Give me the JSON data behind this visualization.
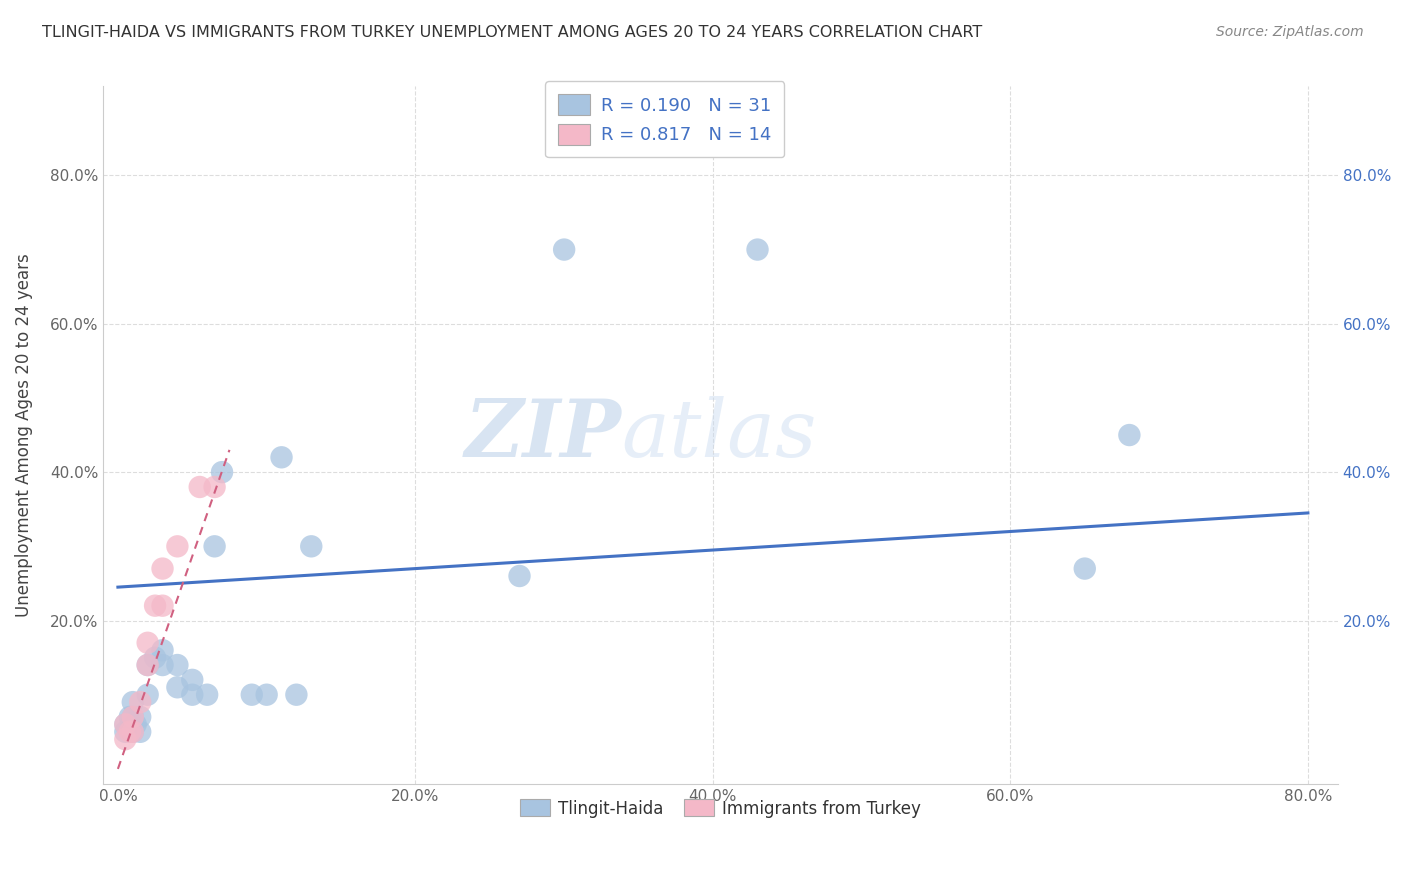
{
  "title": "TLINGIT-HAIDA VS IMMIGRANTS FROM TURKEY UNEMPLOYMENT AMONG AGES 20 TO 24 YEARS CORRELATION CHART",
  "source": "Source: ZipAtlas.com",
  "ylabel": "Unemployment Among Ages 20 to 24 years",
  "xlim": [
    -0.01,
    0.82
  ],
  "ylim": [
    -0.02,
    0.92
  ],
  "xticks": [
    0.0,
    0.2,
    0.4,
    0.6,
    0.8
  ],
  "yticks": [
    0.0,
    0.2,
    0.4,
    0.6,
    0.8
  ],
  "xticklabels": [
    "0.0%",
    "20.0%",
    "40.0%",
    "60.0%",
    "80.0%"
  ],
  "yticklabels": [
    "",
    "20.0%",
    "40.0%",
    "60.0%",
    "80.0%"
  ],
  "right_yticklabels": [
    "",
    "20.0%",
    "40.0%",
    "60.0%",
    "80.0%"
  ],
  "tlingit_scatter_x": [
    0.005,
    0.005,
    0.008,
    0.01,
    0.01,
    0.01,
    0.012,
    0.015,
    0.015,
    0.02,
    0.02,
    0.025,
    0.03,
    0.03,
    0.04,
    0.04,
    0.05,
    0.05,
    0.06,
    0.065,
    0.07,
    0.09,
    0.1,
    0.11,
    0.12,
    0.13,
    0.27,
    0.3,
    0.43,
    0.65,
    0.68
  ],
  "tlingit_scatter_y": [
    0.05,
    0.06,
    0.07,
    0.05,
    0.07,
    0.09,
    0.06,
    0.05,
    0.07,
    0.1,
    0.14,
    0.15,
    0.14,
    0.16,
    0.11,
    0.14,
    0.1,
    0.12,
    0.1,
    0.3,
    0.4,
    0.1,
    0.1,
    0.42,
    0.1,
    0.3,
    0.26,
    0.7,
    0.7,
    0.27,
    0.45
  ],
  "turkey_scatter_x": [
    0.005,
    0.005,
    0.008,
    0.01,
    0.01,
    0.015,
    0.02,
    0.02,
    0.025,
    0.03,
    0.03,
    0.04,
    0.055,
    0.065
  ],
  "turkey_scatter_y": [
    0.04,
    0.06,
    0.05,
    0.05,
    0.07,
    0.09,
    0.14,
    0.17,
    0.22,
    0.22,
    0.27,
    0.3,
    0.38,
    0.38
  ],
  "tlingit_color": "#a8c4e0",
  "turkey_color": "#f4b8c8",
  "tlingit_trend_color": "#4472c4",
  "turkey_trend_color": "#d06080",
  "tlingit_trend_x": [
    0.0,
    0.8
  ],
  "tlingit_trend_y": [
    0.245,
    0.345
  ],
  "turkey_trend_x": [
    0.0,
    0.075
  ],
  "turkey_trend_y": [
    0.0,
    0.43
  ],
  "tlingit_R": 0.19,
  "tlingit_N": 31,
  "turkey_R": 0.817,
  "turkey_N": 14,
  "watermark_zip": "ZIP",
  "watermark_atlas": "atlas",
  "legend_label_tlingit": "Tlingit-Haida",
  "legend_label_turkey": "Immigrants from Turkey",
  "background_color": "#ffffff",
  "grid_color": "#dddddd"
}
